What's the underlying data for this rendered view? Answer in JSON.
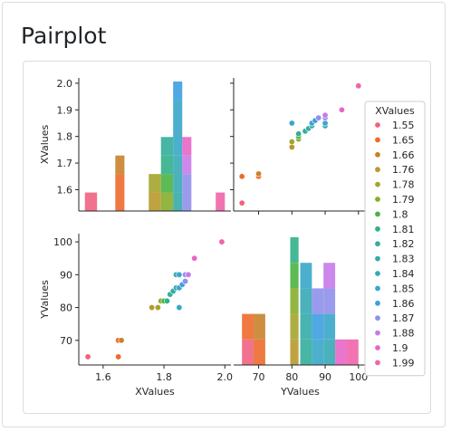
{
  "page": {
    "title": "Pairplot"
  },
  "chart_data": {
    "type": "pairplot",
    "variables": [
      "XValues",
      "YValues"
    ],
    "hue": "XValues",
    "legend": {
      "title": "XValues",
      "placement": "right"
    },
    "hue_levels": [
      {
        "label": "1.55",
        "color": "#f0637f"
      },
      {
        "label": "1.65",
        "color": "#ec6b2c"
      },
      {
        "label": "1.66",
        "color": "#c8822c"
      },
      {
        "label": "1.76",
        "color": "#b79a2c"
      },
      {
        "label": "1.78",
        "color": "#a4a52c"
      },
      {
        "label": "1.79",
        "color": "#87ad2c"
      },
      {
        "label": "1.8",
        "color": "#4bb444"
      },
      {
        "label": "1.81",
        "color": "#32b08a"
      },
      {
        "label": "1.82",
        "color": "#33ae9b"
      },
      {
        "label": "1.83",
        "color": "#35aba8"
      },
      {
        "label": "1.84",
        "color": "#37a9b6"
      },
      {
        "label": "1.85",
        "color": "#3aa6c9"
      },
      {
        "label": "1.86",
        "color": "#3d9fe1"
      },
      {
        "label": "1.87",
        "color": "#8f90ea"
      },
      {
        "label": "1.88",
        "color": "#c77be8"
      },
      {
        "label": "1.9",
        "color": "#e766c8"
      },
      {
        "label": "1.99",
        "color": "#f064a9"
      }
    ],
    "points": [
      {
        "x": 1.55,
        "y": 65
      },
      {
        "x": 1.65,
        "y": 65
      },
      {
        "x": 1.65,
        "y": 70
      },
      {
        "x": 1.66,
        "y": 70
      },
      {
        "x": 1.76,
        "y": 80
      },
      {
        "x": 1.78,
        "y": 80
      },
      {
        "x": 1.79,
        "y": 82
      },
      {
        "x": 1.8,
        "y": 82
      },
      {
        "x": 1.81,
        "y": 82
      },
      {
        "x": 1.82,
        "y": 84
      },
      {
        "x": 1.83,
        "y": 85
      },
      {
        "x": 1.84,
        "y": 86
      },
      {
        "x": 1.84,
        "y": 90
      },
      {
        "x": 1.85,
        "y": 80
      },
      {
        "x": 1.85,
        "y": 86
      },
      {
        "x": 1.85,
        "y": 90
      },
      {
        "x": 1.86,
        "y": 87
      },
      {
        "x": 1.87,
        "y": 88
      },
      {
        "x": 1.87,
        "y": 90
      },
      {
        "x": 1.88,
        "y": 90
      },
      {
        "x": 1.9,
        "y": 95
      },
      {
        "x": 1.99,
        "y": 100
      }
    ],
    "axes": {
      "x_ticks": [
        1.6,
        1.8,
        2.0
      ],
      "x_tick_labels": [
        "1.6",
        "1.8",
        "2.0"
      ],
      "y_ticks": [
        70,
        80,
        90,
        100
      ],
      "y_tick_labels": [
        "70",
        "80",
        "90",
        "100"
      ],
      "x_diag_ticks": [
        1.6,
        1.7,
        1.8,
        1.9,
        2.0
      ],
      "x_diag_tick_labels": [
        "1.6",
        "1.7",
        "1.8",
        "1.9",
        "2.0"
      ],
      "x_range": [
        1.52,
        2.02
      ],
      "y_range": [
        62.5,
        102.5
      ]
    }
  }
}
